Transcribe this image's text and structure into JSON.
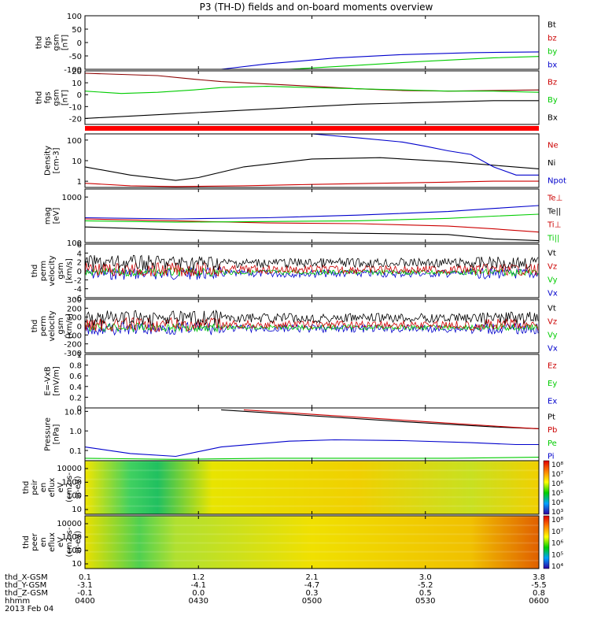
{
  "title": "P3 (TH-D) fields and on-board moments overview",
  "chart_data": {
    "type": "line",
    "x_ticks": [
      "0400",
      "0430",
      "0500",
      "0530",
      "0600"
    ],
    "panels": [
      {
        "id": "fgs-dsl",
        "ylabel": [
          "thd",
          "fgs",
          "gsm",
          "[nT]"
        ],
        "yticks": [
          100,
          50,
          0,
          -50,
          -100
        ],
        "ylim": [
          -100,
          100
        ],
        "legend": [
          {
            "label": "Bt",
            "color": "#000000"
          },
          {
            "label": "bz",
            "color": "#cc0000"
          },
          {
            "label": "by",
            "color": "#00cc00"
          },
          {
            "label": "bx",
            "color": "#0000cc"
          }
        ],
        "series": [
          {
            "color": "#0000cc",
            "x": [
              0.3,
              0.4,
              0.55,
              0.7,
              0.85,
              1.0
            ],
            "y": [
              -100,
              -80,
              -58,
              -45,
              -38,
              -35
            ]
          },
          {
            "color": "#00cc00",
            "x": [
              0.45,
              0.6,
              0.75,
              0.9,
              1.0
            ],
            "y": [
              -100,
              -85,
              -70,
              -57,
              -52
            ]
          }
        ]
      },
      {
        "id": "fgs-gsm",
        "ylabel": [
          "thd",
          "fgs",
          "gsm",
          "[nT]"
        ],
        "yticks": [
          20,
          10,
          0,
          -10,
          -20
        ],
        "ylim": [
          -25,
          20
        ],
        "legend": [
          {
            "label": "Bz",
            "color": "#cc0000"
          },
          {
            "label": "By",
            "color": "#00cc00"
          },
          {
            "label": "Bx",
            "color": "#000000"
          }
        ],
        "series": [
          {
            "color": "#8b0000",
            "x": [
              0,
              0.08,
              0.16,
              0.24,
              0.3,
              0.4,
              0.5,
              0.6,
              0.7,
              0.8,
              0.9,
              1.0
            ],
            "y": [
              18,
              17,
              16,
              13,
              11,
              9,
              7,
              5,
              3.5,
              3,
              3.5,
              4
            ]
          },
          {
            "color": "#00cc00",
            "x": [
              0,
              0.08,
              0.16,
              0.24,
              0.3,
              0.4,
              0.5,
              0.6,
              0.7,
              0.8,
              0.9,
              1.0
            ],
            "y": [
              3,
              1,
              2,
              4,
              6,
              7,
              6,
              5,
              4,
              3,
              3,
              2
            ]
          },
          {
            "color": "#000000",
            "x": [
              0,
              0.1,
              0.2,
              0.3,
              0.4,
              0.5,
              0.6,
              0.7,
              0.8,
              0.9,
              1.0
            ],
            "y": [
              -20,
              -18,
              -16,
              -14,
              -12,
              -10,
              -8,
              -7,
              -6,
              -5,
              -5
            ]
          }
        ]
      },
      {
        "id": "density",
        "ylabel": [
          "Density",
          "[cm-3]"
        ],
        "yticks": [
          "100",
          "10",
          "1"
        ],
        "scale": "log",
        "ylim": [
          0.5,
          200
        ],
        "legend": [
          {
            "label": "Ne",
            "color": "#cc0000"
          },
          {
            "label": "Ni",
            "color": "#000000"
          },
          {
            "label": "Npot",
            "color": "#0000cc"
          }
        ],
        "series": [
          {
            "color": "#000000",
            "x": [
              0,
              0.1,
              0.2,
              0.25,
              0.35,
              0.5,
              0.65,
              0.8,
              0.9,
              1.0
            ],
            "y": [
              5,
              2,
              1.1,
              1.5,
              5,
              12,
              14,
              9,
              6,
              4
            ]
          },
          {
            "color": "#cc0000",
            "x": [
              0,
              0.1,
              0.2,
              0.35,
              0.5,
              0.65,
              0.8,
              0.9,
              1.0
            ],
            "y": [
              0.8,
              0.6,
              0.55,
              0.6,
              0.7,
              0.8,
              0.9,
              1.0,
              1.0
            ]
          },
          {
            "color": "#0000cc",
            "x": [
              0.5,
              0.6,
              0.7,
              0.75,
              0.8,
              0.85,
              0.9,
              0.95,
              1.0
            ],
            "y": [
              200,
              130,
              80,
              50,
              30,
              20,
              5,
              2,
              2
            ]
          }
        ]
      },
      {
        "id": "mom-temp",
        "ylabel": [
          "mag",
          "[eV]"
        ],
        "yticks": [
          "1000",
          "100"
        ],
        "scale": "log",
        "ylim": [
          100,
          1500
        ],
        "legend": [
          {
            "label": "Te⊥",
            "color": "#cc0000"
          },
          {
            "label": "Te||",
            "color": "#000000"
          },
          {
            "label": "Ti⊥",
            "color": "#cc0000"
          },
          {
            "label": "Ti||",
            "color": "#00cc00"
          }
        ],
        "series": [
          {
            "color": "#000000",
            "x": [
              0,
              0.2,
              0.4,
              0.6,
              0.8,
              0.9,
              1.0
            ],
            "y": [
              220,
              190,
              170,
              160,
              150,
              120,
              110
            ]
          },
          {
            "color": "#cc0000",
            "x": [
              0,
              0.2,
              0.4,
              0.6,
              0.8,
              0.9,
              1.0
            ],
            "y": [
              330,
              300,
              270,
              260,
              230,
              200,
              170
            ]
          },
          {
            "color": "#00cc00",
            "x": [
              0,
              0.2,
              0.4,
              0.6,
              0.8,
              0.9,
              1.0
            ],
            "y": [
              300,
              280,
              290,
              300,
              340,
              380,
              420
            ]
          },
          {
            "color": "#0000cc",
            "x": [
              0,
              0.2,
              0.4,
              0.6,
              0.8,
              0.9,
              1.0
            ],
            "y": [
              350,
              330,
              350,
              400,
              480,
              560,
              650
            ]
          }
        ]
      },
      {
        "id": "vel-mag",
        "ylabel": [
          "thd",
          "perm",
          "velocity",
          "gsm",
          "[km/s]"
        ],
        "yticks": [
          6,
          4,
          2,
          0,
          -2,
          -4,
          -6
        ],
        "ylim": [
          -6,
          6
        ],
        "legend": [
          {
            "label": "Vt",
            "color": "#000000"
          },
          {
            "label": "Vz",
            "color": "#cc0000"
          },
          {
            "label": "Vy",
            "color": "#00cc00"
          },
          {
            "label": "Vx",
            "color": "#0000cc"
          }
        ],
        "noise": true
      },
      {
        "id": "vel-gsm",
        "ylabel": [
          "thd",
          "perm",
          "velocity",
          "gsm",
          "[km/s]"
        ],
        "yticks": [
          300,
          200,
          100,
          0,
          -100,
          -200,
          -300
        ],
        "ylim": [
          -300,
          300
        ],
        "legend": [
          {
            "label": "Vt",
            "color": "#000000"
          },
          {
            "label": "Vz",
            "color": "#cc0000"
          },
          {
            "label": "Vy",
            "color": "#00cc00"
          },
          {
            "label": "Vx",
            "color": "#0000cc"
          }
        ],
        "noise": true
      },
      {
        "id": "efield",
        "ylabel": [
          "E=-VxB",
          "[mV/m]"
        ],
        "yticks": [
          1.0,
          0.8,
          0.6,
          0.4,
          0.2,
          0.0
        ],
        "ylim": [
          0,
          1
        ],
        "legend": [
          {
            "label": "Ez",
            "color": "#cc0000"
          },
          {
            "label": "Ey",
            "color": "#00cc00"
          },
          {
            "label": "Ex",
            "color": "#0000cc"
          }
        ]
      },
      {
        "id": "pressure",
        "ylabel": [
          "Pressure",
          "[nPa]"
        ],
        "yticks": [
          "10.0",
          "1.0",
          "0.1"
        ],
        "scale": "log",
        "ylim": [
          0.03,
          15
        ],
        "legend": [
          {
            "label": "Pt",
            "color": "#000000"
          },
          {
            "label": "Pb",
            "color": "#cc0000"
          },
          {
            "label": "Pe",
            "color": "#00cc00"
          },
          {
            "label": "Pi",
            "color": "#0000cc"
          }
        ],
        "series": [
          {
            "color": "#000000",
            "x": [
              0.3,
              0.5,
              0.7,
              0.9,
              1.0
            ],
            "y": [
              12,
              6,
              3,
              1.6,
              1.3
            ]
          },
          {
            "color": "#cc0000",
            "x": [
              0.35,
              0.55,
              0.75,
              0.95,
              1.0
            ],
            "y": [
              12,
              6,
              3,
              1.5,
              1.3
            ]
          },
          {
            "color": "#0000cc",
            "x": [
              0,
              0.1,
              0.2,
              0.3,
              0.45,
              0.55,
              0.7,
              0.85,
              0.95,
              1.0
            ],
            "y": [
              0.15,
              0.07,
              0.05,
              0.15,
              0.3,
              0.35,
              0.32,
              0.25,
              0.2,
              0.2
            ]
          },
          {
            "color": "#00cc00",
            "x": [
              0,
              0.2,
              0.4,
              0.6,
              0.8,
              1.0
            ],
            "y": [
              0.04,
              0.035,
              0.04,
              0.04,
              0.04,
              0.045
            ]
          }
        ]
      },
      {
        "id": "peir",
        "type": "heatmap",
        "ylabel": [
          "thd",
          "peir",
          "en",
          "eflux",
          "eV",
          "(cm2-s-",
          "sr-eV)"
        ],
        "yticks": [
          "10000",
          "1000",
          "100",
          "10"
        ],
        "colorbar": [
          "10⁸",
          "10⁷",
          "10⁶",
          "10⁵",
          "10⁴",
          "10³"
        ]
      },
      {
        "id": "peer",
        "type": "heatmap",
        "ylabel": [
          "thd",
          "peer",
          "en",
          "eflux",
          "eV",
          "(cm2-s-",
          "sr-eV)"
        ],
        "yticks": [
          "10000",
          "1000",
          "100",
          "10"
        ],
        "colorbar": [
          "10⁸",
          "10⁷",
          "10⁶",
          "10⁵",
          "10⁴"
        ]
      }
    ],
    "footer": {
      "rows": [
        {
          "label": "thd_X-GSM",
          "values": [
            "0.1",
            "1.2",
            "2.1",
            "3.0",
            "3.8"
          ]
        },
        {
          "label": "thd_Y-GSM",
          "values": [
            "-3.1",
            "-4.1",
            "-4.7",
            "-5.2",
            "-5.5"
          ]
        },
        {
          "label": "thd_Z-GSM",
          "values": [
            "-0.1",
            "0.0",
            "0.3",
            "0.5",
            "0.8"
          ]
        },
        {
          "label": "hhmm",
          "values": [
            "0400",
            "0430",
            "0500",
            "0530",
            "0600"
          ]
        }
      ],
      "date": "2013 Feb 04"
    }
  }
}
